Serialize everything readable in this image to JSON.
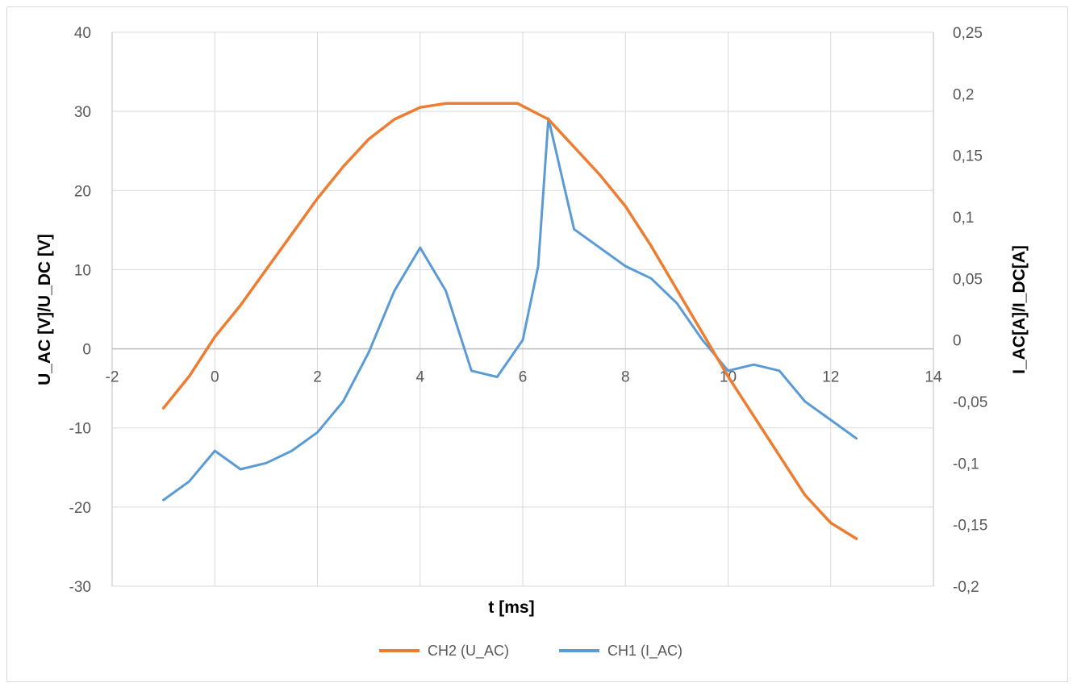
{
  "chart_data": {
    "type": "line",
    "xlabel": "t [ms]",
    "ylabel_left": "U_AC [V]/U_DC [V]",
    "ylabel_right": "I_AC[A]/I_DC[A]",
    "xlim": [
      -2,
      14
    ],
    "ylim_left": [
      -30,
      40
    ],
    "ylim_right": [
      -0.2,
      0.25
    ],
    "x_ticks": [
      "-2",
      "0",
      "2",
      "4",
      "6",
      "8",
      "10",
      "12",
      "14"
    ],
    "y_left_ticks": [
      "-30",
      "-20",
      "-10",
      "0",
      "10",
      "20",
      "30",
      "40"
    ],
    "y_right_ticks": [
      "-0,2",
      "-0,15",
      "-0,1",
      "-0,05",
      "0",
      "0,05",
      "0,1",
      "0,15",
      "0,2",
      "0,25"
    ],
    "grid": true,
    "legend_position": "bottom",
    "series": [
      {
        "name": "CH2 (U_AC)",
        "axis": "left",
        "color": "#ED7D31",
        "x": [
          -1,
          -0.5,
          0,
          0.5,
          1,
          1.5,
          2,
          2.5,
          3,
          3.5,
          4,
          4.5,
          5,
          5.5,
          5.9,
          6.5,
          7,
          7.5,
          8,
          8.5,
          9,
          9.5,
          10,
          10.5,
          11,
          11.5,
          12,
          12.5
        ],
        "y": [
          -7.5,
          -3.5,
          1.5,
          5.5,
          10,
          14.5,
          19,
          23,
          26.5,
          29,
          30.5,
          31,
          31,
          31,
          31,
          29,
          25.5,
          22,
          18,
          13,
          7.5,
          2,
          -3.5,
          -8.5,
          -13.5,
          -18.5,
          -22,
          -24
        ]
      },
      {
        "name": "CH1 (I_AC)",
        "axis": "right",
        "color": "#5B9BD5",
        "x": [
          -1,
          -0.5,
          0,
          0.5,
          1,
          1.5,
          2,
          2.5,
          3,
          3.5,
          4,
          4.5,
          5,
          5.5,
          6,
          6.3,
          6.5,
          7,
          7.5,
          8,
          8.5,
          9,
          9.5,
          10,
          10.5,
          11,
          11.5,
          12,
          12.5
        ],
        "y": [
          -0.13,
          -0.115,
          -0.09,
          -0.105,
          -0.1,
          -0.09,
          -0.075,
          -0.05,
          -0.01,
          0.04,
          0.075,
          0.04,
          -0.025,
          -0.03,
          0,
          0.06,
          0.18,
          0.09,
          0.075,
          0.06,
          0.05,
          0.03,
          0.0,
          -0.025,
          -0.02,
          -0.025,
          -0.05,
          -0.065,
          -0.08
        ]
      }
    ]
  }
}
